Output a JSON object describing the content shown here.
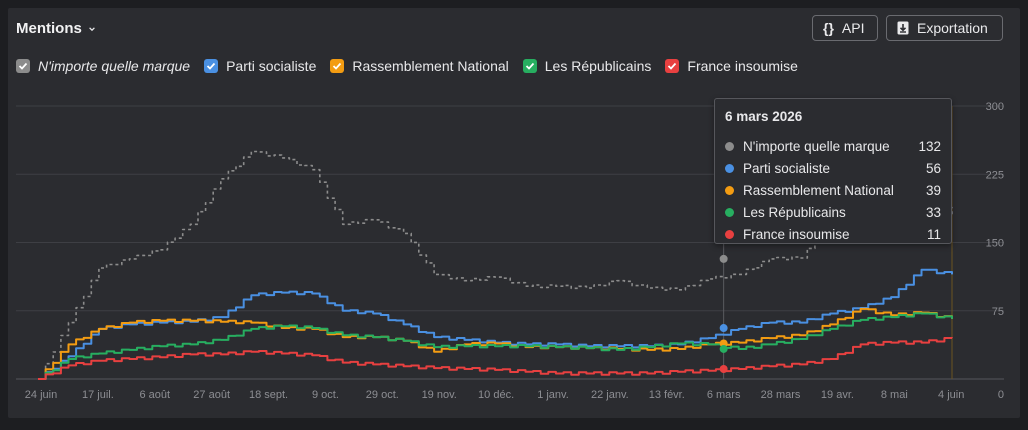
{
  "header": {
    "title": "Mentions"
  },
  "buttons": {
    "api": "API",
    "export": "Exportation"
  },
  "legend": [
    {
      "label": "N'importe quelle marque",
      "color": "#8c8c8c",
      "italic": true
    },
    {
      "label": "Parti socialiste",
      "color": "#4a90e2"
    },
    {
      "label": "Rassemblement National",
      "color": "#f39c12"
    },
    {
      "label": "Les Républicains",
      "color": "#27ae60"
    },
    {
      "label": "France insoumise",
      "color": "#e84040"
    }
  ],
  "tooltip": {
    "date": "6 mars 2026",
    "rows": [
      {
        "name": "N'importe quelle marque",
        "value": "132",
        "color": "#8c8c8c"
      },
      {
        "name": "Parti socialiste",
        "value": "56",
        "color": "#4a90e2"
      },
      {
        "name": "Rassemblement National",
        "value": "39",
        "color": "#f39c12"
      },
      {
        "name": "Les Républicains",
        "value": "33",
        "color": "#27ae60"
      },
      {
        "name": "France insoumise",
        "value": "11",
        "color": "#e84040"
      }
    ]
  },
  "chart_data": {
    "type": "line",
    "x_ticks": [
      "24 juin",
      "17 juil.",
      "6 août",
      "27 août",
      "18 sept.",
      "9 oct.",
      "29 oct.",
      "19 nov.",
      "10 déc.",
      "1 janv.",
      "22 janv.",
      "13 févr.",
      "6 mars",
      "28 mars",
      "19 avr.",
      "8 mai",
      "4 juin"
    ],
    "y_ticks": [
      "0",
      "75",
      "150",
      "225",
      "300"
    ],
    "ylim": [
      0,
      300
    ],
    "y_axis_position": "right",
    "grid": true,
    "highlight_x": "6 mars",
    "series": [
      {
        "name": "N'importe quelle marque",
        "color": "#8c8c8c",
        "dashed": true,
        "values": [
          0,
          62,
          122,
          132,
          142,
          170,
          220,
          250,
          243,
          230,
          170,
          175,
          160,
          115,
          108,
          112,
          102,
          102,
          100,
          108,
          100,
          98,
          110,
          115,
          132,
          133,
          170,
          180,
          205,
          208,
          180
        ]
      },
      {
        "name": "Parti socialiste",
        "color": "#4a90e2",
        "values": [
          0,
          25,
          55,
          60,
          62,
          63,
          68,
          92,
          95,
          94,
          75,
          72,
          60,
          46,
          43,
          40,
          38,
          38,
          36,
          36,
          36,
          38,
          45,
          55,
          62,
          62,
          72,
          78,
          90,
          120,
          115
        ]
      },
      {
        "name": "Rassemblement National",
        "color": "#f39c12",
        "values": [
          0,
          38,
          55,
          62,
          64,
          64,
          63,
          62,
          56,
          55,
          46,
          46,
          42,
          30,
          38,
          39,
          35,
          35,
          34,
          33,
          32,
          33,
          38,
          40,
          45,
          48,
          60,
          77,
          70,
          73,
          66
        ]
      },
      {
        "name": "Les Républicains",
        "color": "#27ae60",
        "values": [
          0,
          22,
          28,
          32,
          36,
          38,
          43,
          55,
          58,
          56,
          48,
          46,
          42,
          35,
          36,
          36,
          36,
          35,
          34,
          32,
          35,
          39,
          38,
          33,
          38,
          44,
          55,
          65,
          68,
          72,
          66
        ]
      },
      {
        "name": "France insoumise",
        "color": "#e84040",
        "values": [
          0,
          15,
          20,
          22,
          24,
          27,
          27,
          30,
          28,
          26,
          18,
          16,
          14,
          12,
          11,
          10,
          8,
          6,
          6,
          6,
          6,
          8,
          9,
          11,
          14,
          16,
          22,
          38,
          40,
          40,
          45
        ]
      }
    ]
  }
}
